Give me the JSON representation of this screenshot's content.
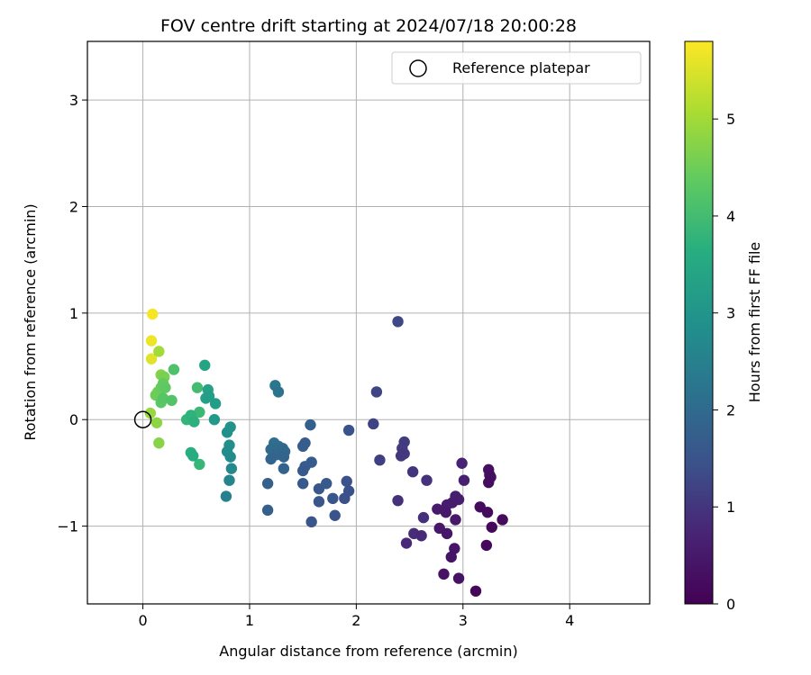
{
  "chart_data": {
    "type": "scatter",
    "title": "FOV centre drift starting at 2024/07/18 20:00:28",
    "xlabel": "Angular distance from reference (arcmin)",
    "ylabel": "Rotation from reference (arcmin)",
    "xlim": [
      -0.52,
      4.75
    ],
    "ylim": [
      -1.73,
      3.55
    ],
    "xticks": [
      0,
      1,
      2,
      3,
      4
    ],
    "yticks": [
      -1,
      0,
      1,
      2,
      3
    ],
    "grid": true,
    "legend": {
      "position": "top-right",
      "entries": [
        "Reference platepar"
      ]
    },
    "reference_point": {
      "x": 0,
      "y": 0
    },
    "colorbar": {
      "label": "Hours from first FF file",
      "colormap": "viridis",
      "range": [
        0,
        5.8
      ],
      "ticks": [
        0,
        1,
        2,
        3,
        4,
        5
      ]
    },
    "points": [
      {
        "x": 0.09,
        "y": 0.99,
        "t": 5.75
      },
      {
        "x": 0.08,
        "y": 0.74,
        "t": 5.65
      },
      {
        "x": 0.08,
        "y": 0.57,
        "t": 5.55
      },
      {
        "x": 0.15,
        "y": 0.64,
        "t": 5.0
      },
      {
        "x": 0.07,
        "y": 0.06,
        "t": 4.9
      },
      {
        "x": 0.13,
        "y": -0.03,
        "t": 4.8
      },
      {
        "x": 0.15,
        "y": -0.22,
        "t": 4.75
      },
      {
        "x": 0.17,
        "y": 0.42,
        "t": 4.7
      },
      {
        "x": 0.2,
        "y": 0.4,
        "t": 4.6
      },
      {
        "x": 0.14,
        "y": 0.26,
        "t": 4.55
      },
      {
        "x": 0.12,
        "y": 0.23,
        "t": 4.5
      },
      {
        "x": 0.17,
        "y": 0.3,
        "t": 4.45
      },
      {
        "x": 0.19,
        "y": 0.34,
        "t": 4.4
      },
      {
        "x": 0.21,
        "y": 0.3,
        "t": 4.35
      },
      {
        "x": 0.17,
        "y": 0.16,
        "t": 4.3
      },
      {
        "x": 0.19,
        "y": 0.2,
        "t": 4.25
      },
      {
        "x": 0.27,
        "y": 0.18,
        "t": 4.2
      },
      {
        "x": 0.29,
        "y": 0.47,
        "t": 4.15
      },
      {
        "x": 0.51,
        "y": 0.3,
        "t": 4.0
      },
      {
        "x": 0.53,
        "y": 0.07,
        "t": 3.9
      },
      {
        "x": 0.53,
        "y": -0.42,
        "t": 3.85
      },
      {
        "x": 0.41,
        "y": 0.0,
        "t": 3.8
      },
      {
        "x": 0.45,
        "y": 0.04,
        "t": 3.75
      },
      {
        "x": 0.48,
        "y": -0.02,
        "t": 3.7
      },
      {
        "x": 0.45,
        "y": -0.31,
        "t": 3.65
      },
      {
        "x": 0.47,
        "y": -0.34,
        "t": 3.6
      },
      {
        "x": 0.58,
        "y": 0.51,
        "t": 3.4
      },
      {
        "x": 0.61,
        "y": 0.28,
        "t": 3.35
      },
      {
        "x": 0.59,
        "y": 0.2,
        "t": 3.3
      },
      {
        "x": 0.62,
        "y": 0.22,
        "t": 3.25
      },
      {
        "x": 0.68,
        "y": 0.15,
        "t": 3.2
      },
      {
        "x": 0.67,
        "y": 0.0,
        "t": 3.1
      },
      {
        "x": 0.82,
        "y": -0.07,
        "t": 2.95
      },
      {
        "x": 0.79,
        "y": -0.12,
        "t": 2.9
      },
      {
        "x": 0.81,
        "y": -0.24,
        "t": 2.85
      },
      {
        "x": 0.79,
        "y": -0.3,
        "t": 2.8
      },
      {
        "x": 0.82,
        "y": -0.35,
        "t": 2.75
      },
      {
        "x": 0.83,
        "y": -0.46,
        "t": 2.7
      },
      {
        "x": 0.81,
        "y": -0.57,
        "t": 2.6
      },
      {
        "x": 0.78,
        "y": -0.72,
        "t": 2.5
      },
      {
        "x": 1.24,
        "y": 0.32,
        "t": 2.25
      },
      {
        "x": 1.27,
        "y": 0.26,
        "t": 2.2
      },
      {
        "x": 1.23,
        "y": -0.22,
        "t": 2.1
      },
      {
        "x": 1.27,
        "y": -0.25,
        "t": 2.05
      },
      {
        "x": 1.2,
        "y": -0.28,
        "t": 2.0
      },
      {
        "x": 1.31,
        "y": -0.27,
        "t": 1.95
      },
      {
        "x": 1.33,
        "y": -0.3,
        "t": 1.92
      },
      {
        "x": 1.25,
        "y": -0.33,
        "t": 1.9
      },
      {
        "x": 1.2,
        "y": -0.37,
        "t": 1.88
      },
      {
        "x": 1.32,
        "y": -0.35,
        "t": 1.85
      },
      {
        "x": 1.32,
        "y": -0.46,
        "t": 1.82
      },
      {
        "x": 1.17,
        "y": -0.6,
        "t": 1.8
      },
      {
        "x": 1.17,
        "y": -0.85,
        "t": 1.78
      },
      {
        "x": 1.57,
        "y": -0.05,
        "t": 1.75
      },
      {
        "x": 1.52,
        "y": -0.22,
        "t": 1.72
      },
      {
        "x": 1.5,
        "y": -0.25,
        "t": 1.7
      },
      {
        "x": 1.58,
        "y": -0.4,
        "t": 1.68
      },
      {
        "x": 1.52,
        "y": -0.44,
        "t": 1.66
      },
      {
        "x": 1.5,
        "y": -0.48,
        "t": 1.64
      },
      {
        "x": 1.5,
        "y": -0.6,
        "t": 1.62
      },
      {
        "x": 1.72,
        "y": -0.6,
        "t": 1.6
      },
      {
        "x": 1.65,
        "y": -0.65,
        "t": 1.58
      },
      {
        "x": 1.65,
        "y": -0.77,
        "t": 1.56
      },
      {
        "x": 1.78,
        "y": -0.74,
        "t": 1.54
      },
      {
        "x": 1.58,
        "y": -0.96,
        "t": 1.52
      },
      {
        "x": 1.8,
        "y": -0.9,
        "t": 1.5
      },
      {
        "x": 1.93,
        "y": -0.1,
        "t": 1.48
      },
      {
        "x": 1.91,
        "y": -0.58,
        "t": 1.46
      },
      {
        "x": 1.93,
        "y": -0.67,
        "t": 1.44
      },
      {
        "x": 1.89,
        "y": -0.74,
        "t": 1.42
      },
      {
        "x": 2.39,
        "y": 0.92,
        "t": 1.3
      },
      {
        "x": 2.19,
        "y": 0.26,
        "t": 1.25
      },
      {
        "x": 2.16,
        "y": -0.04,
        "t": 1.2
      },
      {
        "x": 2.22,
        "y": -0.38,
        "t": 1.15
      },
      {
        "x": 2.45,
        "y": -0.21,
        "t": 1.1
      },
      {
        "x": 2.43,
        "y": -0.27,
        "t": 1.08
      },
      {
        "x": 2.45,
        "y": -0.32,
        "t": 1.05
      },
      {
        "x": 2.42,
        "y": -0.34,
        "t": 1.02
      },
      {
        "x": 2.53,
        "y": -0.49,
        "t": 1.0
      },
      {
        "x": 2.66,
        "y": -0.57,
        "t": 0.95
      },
      {
        "x": 2.39,
        "y": -0.76,
        "t": 0.92
      },
      {
        "x": 2.63,
        "y": -0.92,
        "t": 0.88
      },
      {
        "x": 2.54,
        "y": -1.07,
        "t": 0.85
      },
      {
        "x": 2.61,
        "y": -1.09,
        "t": 0.82
      },
      {
        "x": 2.47,
        "y": -1.16,
        "t": 0.8
      },
      {
        "x": 2.99,
        "y": -0.41,
        "t": 0.7
      },
      {
        "x": 3.01,
        "y": -0.57,
        "t": 0.65
      },
      {
        "x": 2.93,
        "y": -0.72,
        "t": 0.6
      },
      {
        "x": 2.96,
        "y": -0.75,
        "t": 0.58
      },
      {
        "x": 2.9,
        "y": -0.78,
        "t": 0.56
      },
      {
        "x": 2.85,
        "y": -0.8,
        "t": 0.54
      },
      {
        "x": 2.76,
        "y": -0.84,
        "t": 0.52
      },
      {
        "x": 2.84,
        "y": -0.87,
        "t": 0.5
      },
      {
        "x": 2.93,
        "y": -0.94,
        "t": 0.48
      },
      {
        "x": 2.78,
        "y": -1.02,
        "t": 0.46
      },
      {
        "x": 2.85,
        "y": -1.07,
        "t": 0.44
      },
      {
        "x": 2.92,
        "y": -1.21,
        "t": 0.42
      },
      {
        "x": 2.89,
        "y": -1.29,
        "t": 0.4
      },
      {
        "x": 2.82,
        "y": -1.45,
        "t": 0.38
      },
      {
        "x": 2.96,
        "y": -1.49,
        "t": 0.36
      },
      {
        "x": 3.24,
        "y": -0.47,
        "t": 0.3
      },
      {
        "x": 3.25,
        "y": -0.52,
        "t": 0.28
      },
      {
        "x": 3.26,
        "y": -0.54,
        "t": 0.26
      },
      {
        "x": 3.24,
        "y": -0.59,
        "t": 0.24
      },
      {
        "x": 3.16,
        "y": -0.82,
        "t": 0.22
      },
      {
        "x": 3.23,
        "y": -0.87,
        "t": 0.2
      },
      {
        "x": 3.37,
        "y": -0.94,
        "t": 0.18
      },
      {
        "x": 3.27,
        "y": -1.01,
        "t": 0.16
      },
      {
        "x": 3.22,
        "y": -1.18,
        "t": 0.14
      },
      {
        "x": 3.12,
        "y": -1.61,
        "t": 0.12
      }
    ]
  }
}
